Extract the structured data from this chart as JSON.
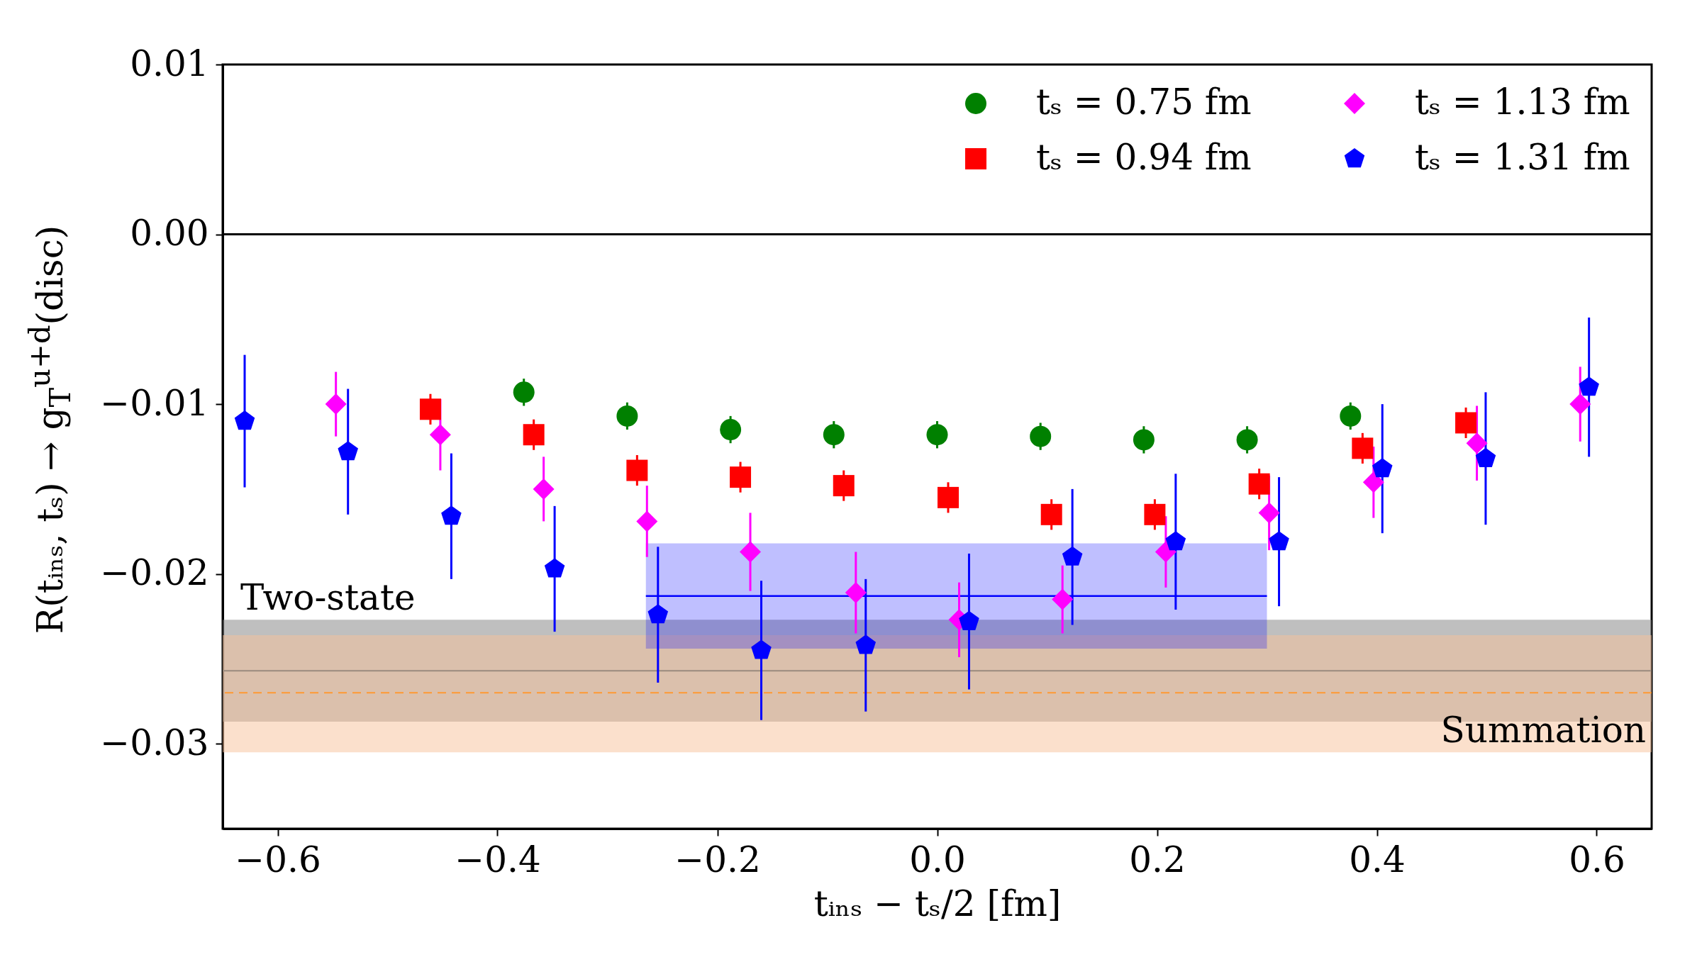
{
  "chart_data": {
    "type": "scatter",
    "xlabel": "tᵢₙₛ − tₛ/2 [fm]",
    "ylabel": "R(tᵢₙₛ, tₛ) → g$_{T}$$^{u+d}$(disc)",
    "xlim": [
      -0.65,
      0.65
    ],
    "xticks": [
      -0.6,
      -0.4,
      -0.2,
      {
        "value": 0,
        "label": "0.0"
      },
      0.2,
      0.4,
      0.6
    ],
    "ylim": [
      -0.035,
      0.01
    ],
    "yticks": [
      -0.03,
      -0.02,
      -0.01,
      {
        "value": 0,
        "label": "0.00"
      },
      0.01
    ],
    "grid": false,
    "legend": "top right",
    "series": [
      {
        "name": "tₛ = 0.75 fm",
        "color": "#008000",
        "marker": "circle",
        "x": [
          -0.376,
          -0.282,
          -0.188,
          -0.094,
          0.0,
          0.094,
          0.188,
          0.282,
          0.376
        ],
        "values": [
          -0.0093,
          -0.0107,
          -0.0115,
          -0.0118,
          -0.0118,
          -0.0119,
          -0.0121,
          -0.0121,
          -0.0107
        ],
        "errors": [
          0.0008,
          0.0008,
          0.0008,
          0.0008,
          0.0008,
          0.0008,
          0.0008,
          0.0008,
          0.0008
        ]
      },
      {
        "name": "tₛ = 0.94 fm",
        "color": "#ff0000",
        "marker": "square",
        "x": [
          -0.461,
          -0.367,
          -0.273,
          -0.179,
          -0.085,
          0.01,
          0.104,
          0.198,
          0.293,
          0.387,
          0.481
        ],
        "values": [
          -0.0103,
          -0.0118,
          -0.0139,
          -0.0143,
          -0.0148,
          -0.0155,
          -0.0165,
          -0.0165,
          -0.0147,
          -0.0126,
          -0.0111
        ],
        "errors": [
          0.0009,
          0.0009,
          0.0009,
          0.0009,
          0.0009,
          0.0009,
          0.0009,
          0.0009,
          0.0009,
          0.0009,
          0.0009
        ]
      },
      {
        "name": "tₛ = 1.13 fm",
        "color": "#ff00ff",
        "marker": "diamond",
        "x": [
          -0.547,
          -0.452,
          -0.358,
          -0.264,
          -0.17,
          -0.074,
          0.02,
          0.114,
          0.208,
          0.302,
          0.397,
          0.491,
          0.585
        ],
        "values": [
          -0.01,
          -0.0118,
          -0.015,
          -0.0169,
          -0.0187,
          -0.0211,
          -0.0227,
          -0.0215,
          -0.0187,
          -0.0164,
          -0.0146,
          -0.0123,
          -0.01
        ],
        "errors": [
          0.0019,
          0.0021,
          0.0019,
          0.0021,
          0.0023,
          0.0024,
          0.0022,
          0.002,
          0.0021,
          0.0022,
          0.0021,
          0.0022,
          0.0022
        ]
      },
      {
        "name": "tₛ = 1.31 fm",
        "color": "#0000ff",
        "x": [
          -0.63,
          -0.536,
          -0.442,
          -0.348,
          -0.254,
          -0.16,
          -0.065,
          0.029,
          0.123,
          0.217,
          0.311,
          0.405,
          0.499,
          0.593
        ],
        "values": [
          -0.011,
          -0.0128,
          -0.0166,
          -0.0197,
          -0.0224,
          -0.0245,
          -0.0242,
          -0.0228,
          -0.019,
          -0.0181,
          -0.0181,
          -0.0138,
          -0.0132,
          -0.009
        ],
        "errors": [
          0.0039,
          0.0037,
          0.0037,
          0.0037,
          0.004,
          0.0041,
          0.0039,
          0.004,
          0.004,
          0.004,
          0.0038,
          0.0038,
          0.0039,
          0.0041
        ]
      },
      {
        "type": "line",
        "color": "#0000ff",
        "x": [
          -0.265,
          0.3
        ],
        "values": [
          -0.0213,
          -0.0213
        ],
        "lower": [
          -0.0244,
          -0.0244
        ],
        "upper": [
          -0.0182,
          -0.0182
        ]
      }
    ],
    "bands": [
      {
        "axis": "y",
        "from": -0.0287,
        "to": -0.0227,
        "label": "Two-state",
        "color": "#7f7f7f"
      },
      {
        "axis": "y",
        "from": -0.0305,
        "to": -0.0236,
        "label": "Summation",
        "color": "#f8c19a"
      }
    ],
    "ref_lines": [
      {
        "axis": "y",
        "value": 0.0,
        "color": "#000000",
        "line_style": "solid"
      },
      {
        "axis": "y",
        "value": -0.0257,
        "color": "#9a8a7e",
        "line_style": "solid"
      },
      {
        "axis": "y",
        "value": -0.027,
        "color": "#ff9933",
        "line_style": "dashed"
      }
    ]
  }
}
